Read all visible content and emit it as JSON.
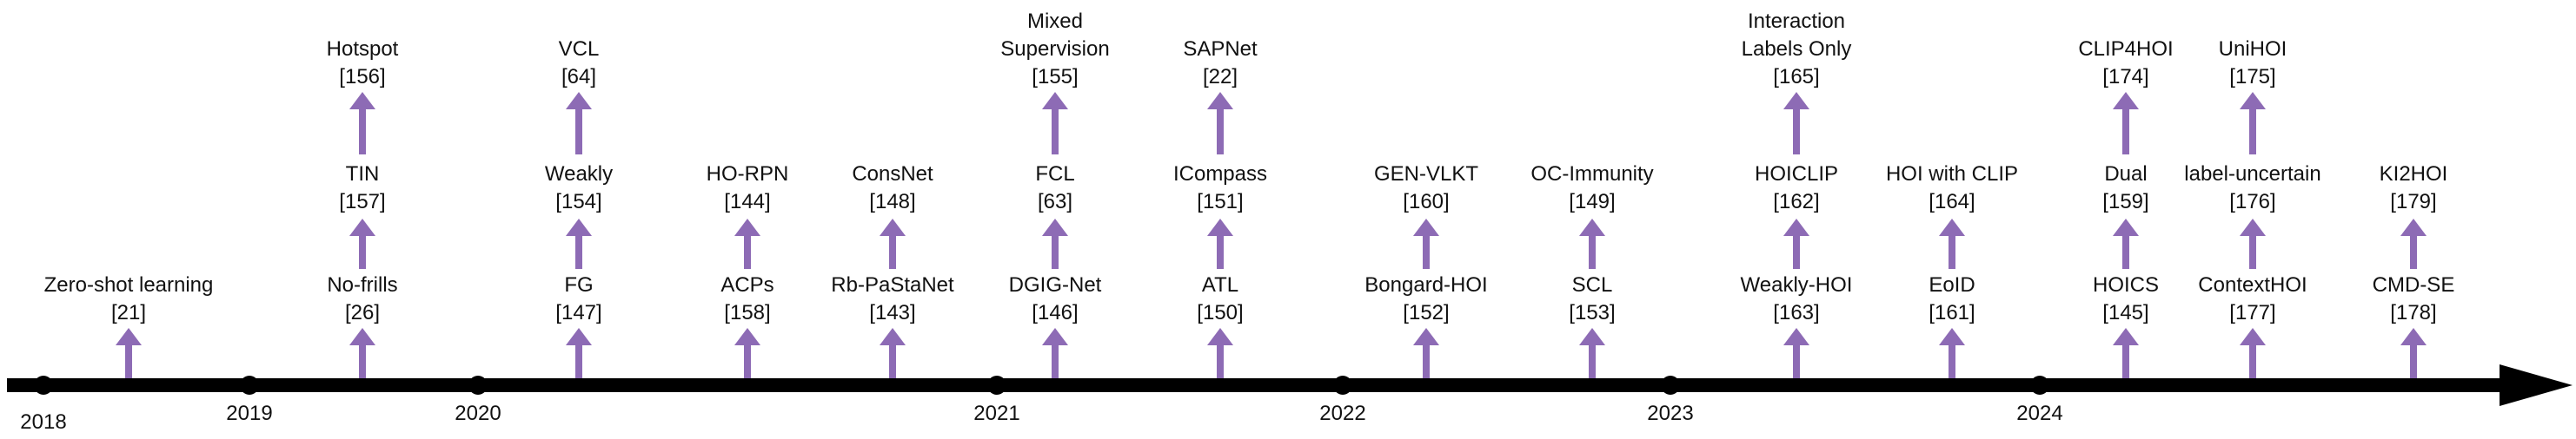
{
  "axis": {
    "color": "#000000",
    "arrow_color": "#8d6bb5"
  },
  "years": [
    "2018",
    "2019",
    "2020",
    "2021",
    "2022",
    "2023",
    "2024"
  ],
  "columns": [
    {
      "items": [
        {
          "name": "Zero-shot learning",
          "ref": "[21]"
        }
      ]
    },
    {
      "items": [
        {
          "name": "No-frills",
          "ref": "[26]"
        },
        {
          "name": "TIN",
          "ref": "[157]"
        },
        {
          "name": "Hotspot",
          "ref": "[156]"
        }
      ]
    },
    {
      "items": [
        {
          "name": "FG",
          "ref": "[147]"
        },
        {
          "name": "Weakly",
          "ref": "[154]"
        },
        {
          "name": "VCL",
          "ref": "[64]"
        }
      ]
    },
    {
      "items": [
        {
          "name": "ACPs",
          "ref": "[158]"
        },
        {
          "name": "HO-RPN",
          "ref": "[144]"
        }
      ]
    },
    {
      "items": [
        {
          "name": "Rb-PaStaNet",
          "ref": "[143]"
        },
        {
          "name": "ConsNet",
          "ref": "[148]"
        }
      ]
    },
    {
      "items": [
        {
          "name": "DGIG-Net",
          "ref": "[146]"
        },
        {
          "name": "FCL",
          "ref": "[63]"
        },
        {
          "name": "Mixed Supervision",
          "ref": "[155]"
        }
      ]
    },
    {
      "items": [
        {
          "name": "ATL",
          "ref": "[150]"
        },
        {
          "name": "ICompass",
          "ref": "[151]"
        },
        {
          "name": "SAPNet",
          "ref": "[22]"
        }
      ]
    },
    {
      "items": [
        {
          "name": "Bongard-HOI",
          "ref": "[152]"
        },
        {
          "name": "GEN-VLKT",
          "ref": "[160]"
        }
      ]
    },
    {
      "items": [
        {
          "name": "SCL",
          "ref": "[153]"
        },
        {
          "name": "OC-Immunity",
          "ref": "[149]"
        }
      ]
    },
    {
      "items": [
        {
          "name": "Weakly-HOI",
          "ref": "[163]"
        },
        {
          "name": "HOICLIP",
          "ref": "[162]"
        },
        {
          "name": "Interaction Labels Only",
          "ref": "[165]"
        }
      ]
    },
    {
      "items": [
        {
          "name": "EoID",
          "ref": "[161]"
        },
        {
          "name": "HOI with CLIP",
          "ref": "[164]"
        }
      ]
    },
    {
      "items": [
        {
          "name": "HOICS",
          "ref": "[145]"
        },
        {
          "name": "Dual",
          "ref": "[159]"
        },
        {
          "name": "CLIP4HOI",
          "ref": "[174]"
        }
      ]
    },
    {
      "items": [
        {
          "name": "ContextHOI",
          "ref": "[177]"
        },
        {
          "name": "label-uncertain",
          "ref": "[176]"
        },
        {
          "name": "UniHOI",
          "ref": "[175]"
        }
      ]
    },
    {
      "items": [
        {
          "name": "CMD-SE",
          "ref": "[178]"
        },
        {
          "name": "KI2HOI",
          "ref": "[179]"
        }
      ]
    }
  ]
}
